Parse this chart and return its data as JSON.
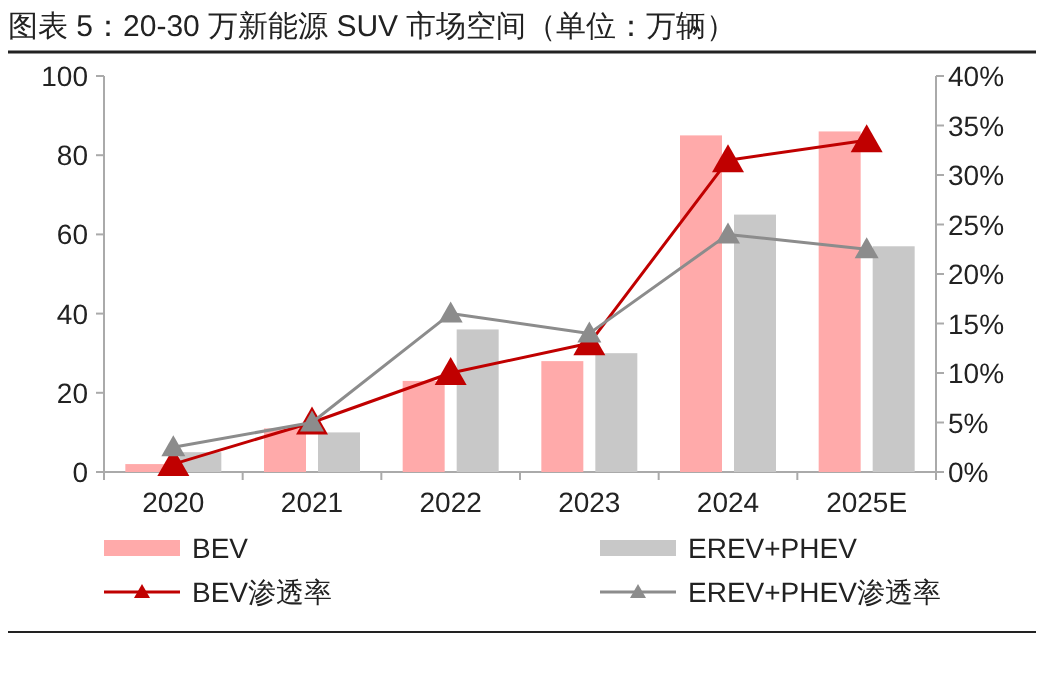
{
  "chart_data": {
    "type": "bar",
    "title": "图表 5：20-30 万新能源 SUV 市场空间（单位：万辆）",
    "categories": [
      "2020",
      "2021",
      "2022",
      "2023",
      "2024",
      "2025E"
    ],
    "series": [
      {
        "name": "BEV",
        "color": "#ffaaaa",
        "values": [
          2,
          11,
          23,
          28,
          85,
          86
        ]
      },
      {
        "name": "EREV+PHEV",
        "color": "#c8c8c8",
        "values": [
          5,
          10,
          36,
          30,
          65,
          57
        ]
      },
      {
        "name": "BEV渗透率",
        "type": "line",
        "axis": "y2",
        "color": "#c00000",
        "values": [
          0.8,
          5,
          10,
          13,
          31.5,
          33.5
        ]
      },
      {
        "name": "EREV+PHEV渗透率",
        "type": "line",
        "axis": "y2",
        "color": "#8c8c8c",
        "values": [
          2.5,
          5,
          16,
          14,
          24,
          22.5
        ]
      }
    ],
    "ylim": [
      0,
      100
    ],
    "yticks": [
      0,
      20,
      40,
      60,
      80,
      100
    ],
    "y2lim": [
      0,
      40
    ],
    "y2ticks": [
      {
        "value": 0,
        "label": "0%"
      },
      {
        "value": 5,
        "label": "5%"
      },
      {
        "value": 10,
        "label": "10%"
      },
      {
        "value": 15,
        "label": "15%"
      },
      {
        "value": 20,
        "label": "20%"
      },
      {
        "value": 25,
        "label": "25%"
      },
      {
        "value": 30,
        "label": "30%"
      },
      {
        "value": 35,
        "label": "35%"
      },
      {
        "value": 40,
        "label": "40%"
      }
    ],
    "marker": "triangle",
    "legend": "bottom"
  }
}
